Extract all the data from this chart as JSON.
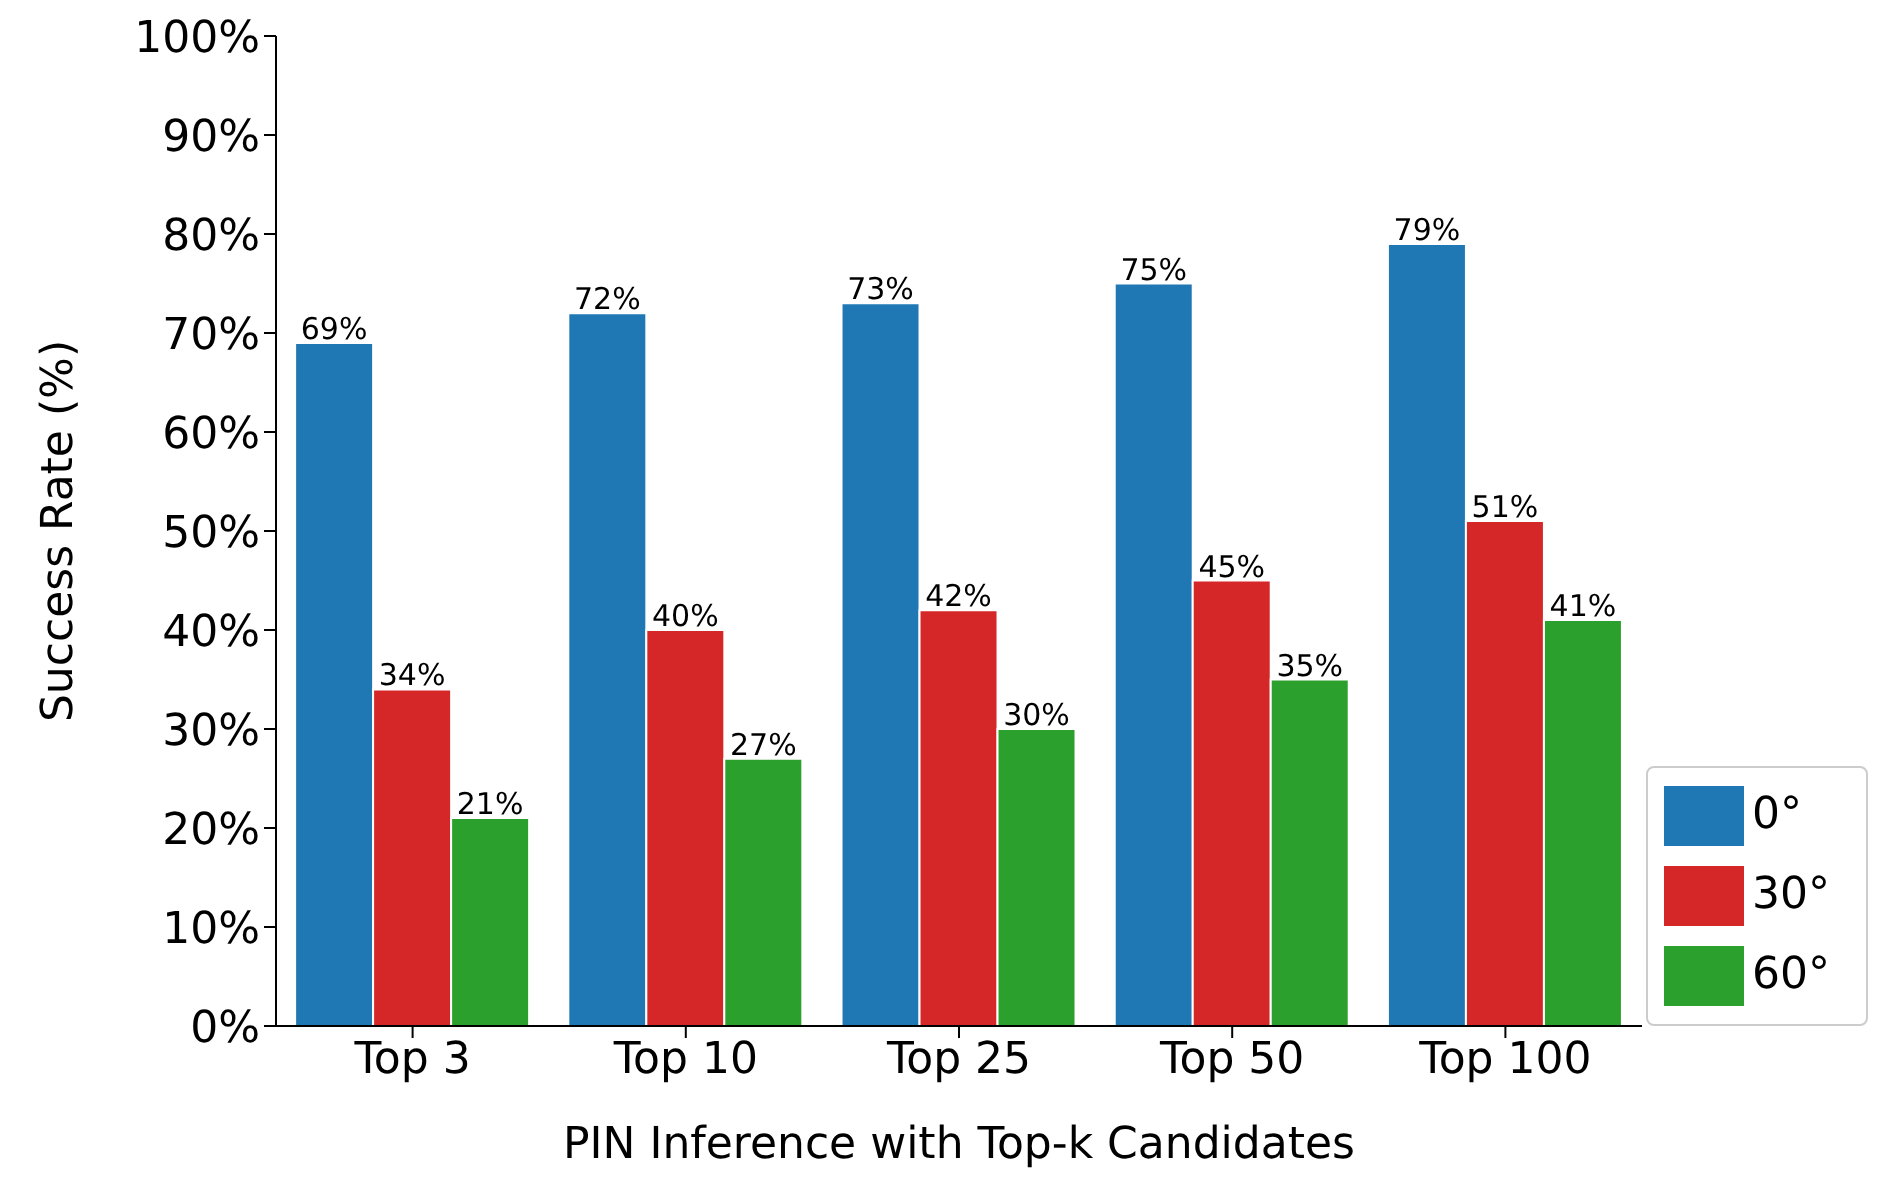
{
  "chart_data": {
    "type": "bar",
    "xlabel": "PIN Inference with Top-k Candidates",
    "ylabel": "Success Rate (%)",
    "categories": [
      "Top 3",
      "Top 10",
      "Top 25",
      "Top 50",
      "Top 100"
    ],
    "series": [
      {
        "name": "0°",
        "color": "#1f77b4",
        "values": [
          69,
          72,
          73,
          75,
          79
        ],
        "value_labels": [
          "69%",
          "72%",
          "73%",
          "75%",
          "79%"
        ]
      },
      {
        "name": "30°",
        "color": "#d62728",
        "values": [
          34,
          40,
          42,
          45,
          51
        ],
        "value_labels": [
          "34%",
          "40%",
          "42%",
          "45%",
          "51%"
        ]
      },
      {
        "name": "60°",
        "color": "#2ca02c",
        "values": [
          21,
          27,
          30,
          35,
          41
        ],
        "value_labels": [
          "21%",
          "27%",
          "30%",
          "35%",
          "41%"
        ]
      }
    ],
    "ylim": [
      0,
      100
    ],
    "yticks": [
      {
        "value": 0,
        "label": "0%"
      },
      {
        "value": 10,
        "label": "10%"
      },
      {
        "value": 20,
        "label": "20%"
      },
      {
        "value": 30,
        "label": "30%"
      },
      {
        "value": 40,
        "label": "40%"
      },
      {
        "value": 50,
        "label": "50%"
      },
      {
        "value": 60,
        "label": "60%"
      },
      {
        "value": 70,
        "label": "70%"
      },
      {
        "value": 80,
        "label": "80%"
      },
      {
        "value": 90,
        "label": "90%"
      },
      {
        "value": 100,
        "label": "100%"
      }
    ],
    "legend": "bottom right",
    "grid": false
  }
}
